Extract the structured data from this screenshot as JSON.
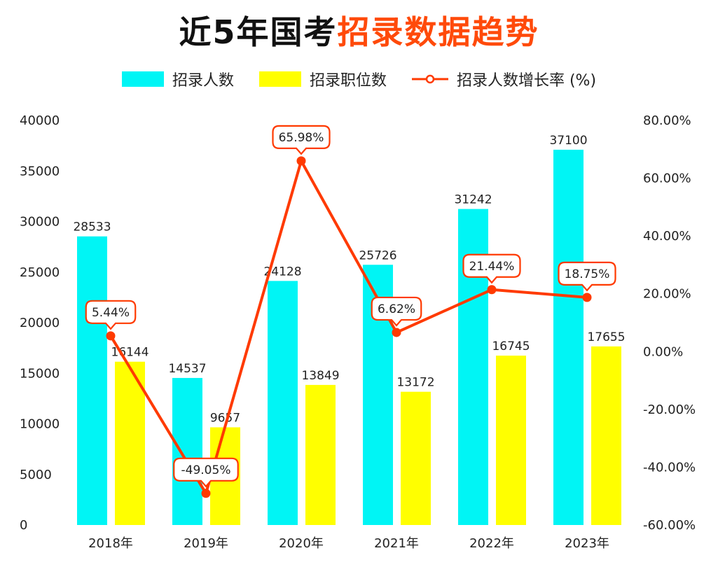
{
  "title": {
    "part1": "近5年国考",
    "part2": "招录数据趋势"
  },
  "colors": {
    "bar1": "#00f5f5",
    "bar2": "#ffff00",
    "line": "#ff3a00",
    "accent": "#ff4a0a"
  },
  "legend": {
    "bar1": "招录人数",
    "bar2": "招录职位数",
    "line": "招录人数增长率 (%)"
  },
  "chart_data": {
    "type": "bar",
    "categories": [
      "2018年",
      "2019年",
      "2020年",
      "2021年",
      "2022年",
      "2023年"
    ],
    "series": [
      {
        "name": "招录人数",
        "type": "bar",
        "axis": "left",
        "values": [
          28533,
          14537,
          24128,
          25726,
          31242,
          37100
        ]
      },
      {
        "name": "招录职位数",
        "type": "bar",
        "axis": "left",
        "values": [
          16144,
          9657,
          13849,
          13172,
          16745,
          17655
        ]
      },
      {
        "name": "招录人数增长率 (%)",
        "type": "line",
        "axis": "right",
        "values": [
          5.44,
          -49.05,
          65.98,
          6.62,
          21.44,
          18.75
        ],
        "labels": [
          "5.44%",
          "-49.05%",
          "65.98%",
          "6.62%",
          "21.44%",
          "18.75%"
        ]
      }
    ],
    "ylim_left": [
      0,
      40000
    ],
    "yticks_left": [
      "0",
      "5000",
      "10000",
      "15000",
      "20000",
      "25000",
      "30000",
      "35000",
      "40000"
    ],
    "ylim_right": [
      -60,
      80
    ],
    "yticks_right": [
      "-60.00%",
      "-40.00%",
      "-20.00%",
      "0.00%",
      "20.00%",
      "40.00%",
      "60.00%",
      "80.00%"
    ],
    "legend_position": "top",
    "grid": false
  }
}
